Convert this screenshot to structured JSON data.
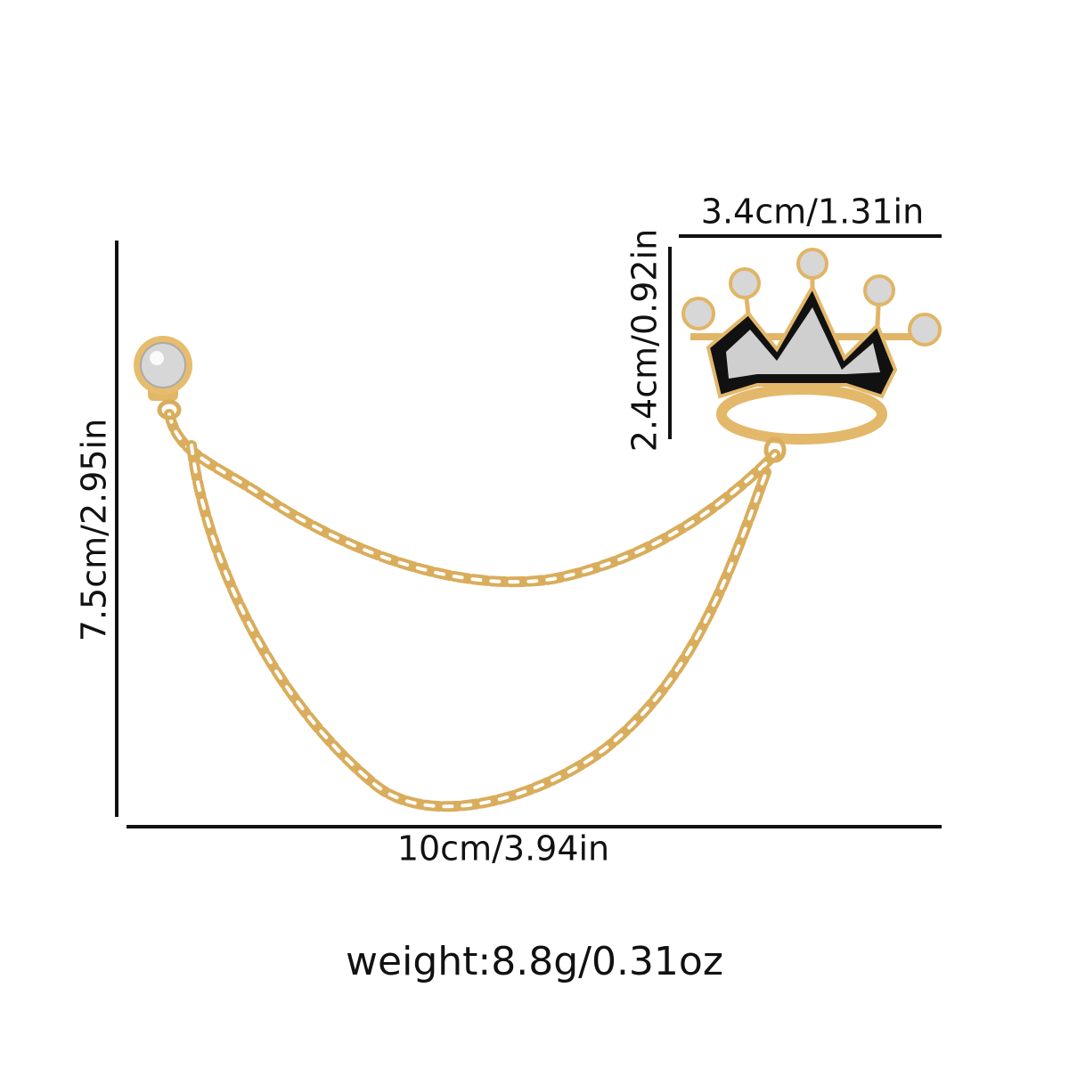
{
  "dimensions": {
    "length": "7.5cm/2.95in",
    "width": "10cm/3.94in",
    "crown_width": "3.4cm/1.31in",
    "crown_height": "2.4cm/0.92in"
  },
  "weight": "weight:8.8g/0.31oz"
}
